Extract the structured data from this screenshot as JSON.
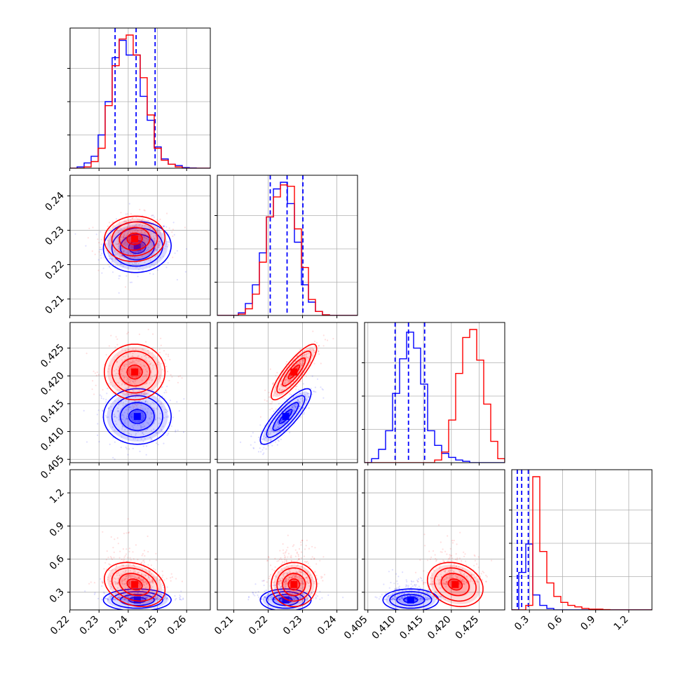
{
  "chart_data": {
    "type": "corner",
    "grid": true,
    "colors": {
      "series_a": "#0000ff",
      "series_b": "#ff0000"
    },
    "parameters": [
      {
        "ticks": [
          0.22,
          0.23,
          0.24,
          0.25,
          0.26
        ],
        "tick_labels": [
          "0.22",
          "0.23",
          "0.24",
          "0.25",
          "0.26"
        ],
        "range": [
          0.2201,
          0.2681
        ],
        "x_axis_shown": true,
        "y_axis_shown": false
      },
      {
        "ticks": [
          0.21,
          0.22,
          0.23,
          0.24
        ],
        "tick_labels": [
          "0.21",
          "0.22",
          "0.23",
          "0.24"
        ],
        "range": [
          0.2052,
          0.246
        ],
        "x_axis_shown": true,
        "y_axis_shown": true
      },
      {
        "ticks": [
          0.405,
          0.41,
          0.415,
          0.42,
          0.425
        ],
        "tick_labels": [
          "0.405",
          "0.410",
          "0.415",
          "0.420",
          "0.425"
        ],
        "range": [
          0.4044,
          0.4296
        ],
        "x_axis_shown": true,
        "y_axis_shown": true
      },
      {
        "ticks": [
          0.3,
          0.6,
          0.9,
          1.2
        ],
        "tick_labels": [
          "0.3",
          "0.6",
          "0.9",
          "1.2"
        ],
        "range": [
          0.14,
          1.41
        ],
        "x_axis_shown": true,
        "y_axis_shown": true
      }
    ],
    "series": [
      {
        "key": "series_a",
        "means": [
          0.2431,
          0.2251,
          0.4127,
          0.23
        ],
        "sds": [
          0.0058,
          0.0037,
          0.0025,
          0.05
        ],
        "corr": [
          [
            0,
            1,
            0.05
          ],
          [
            1,
            2,
            0.85
          ],
          [
            0,
            2,
            0.0
          ],
          [
            0,
            3,
            0.0
          ],
          [
            1,
            3,
            0.0
          ],
          [
            2,
            3,
            0.0
          ]
        ],
        "quantile_lines": [
          [
            0.2355,
            0.2427,
            0.2492
          ],
          [
            0.2206,
            0.2255,
            0.2301
          ],
          [
            0.4099,
            0.4123,
            0.4152
          ],
          [
            0.19,
            0.23,
            0.29
          ]
        ],
        "histograms": [
          [
            0.0,
            0.01,
            0.04,
            0.09,
            0.25,
            0.5,
            0.83,
            0.96,
            0.85,
            0.85,
            0.54,
            0.36,
            0.16,
            0.07,
            0.03,
            0.02,
            0.005,
            0.002,
            0.0,
            0.0
          ],
          [
            0.0,
            0.0,
            0.0,
            0.02,
            0.09,
            0.23,
            0.47,
            0.74,
            0.95,
            1.0,
            0.84,
            0.55,
            0.23,
            0.1,
            0.03,
            0.005,
            0.0,
            0.0,
            0.0,
            0.0
          ],
          [
            0.0,
            0.03,
            0.1,
            0.24,
            0.52,
            0.78,
            0.98,
            0.86,
            0.59,
            0.24,
            0.13,
            0.07,
            0.04,
            0.02,
            0.01,
            0.0,
            0.0,
            0.0,
            0.0,
            0.0
          ],
          [
            0.0,
            0.25,
            0.44,
            0.1,
            0.03,
            0.01,
            0.0,
            0.0,
            0.0,
            0.0,
            0.0,
            0.0,
            0.0,
            0.0,
            0.0,
            0.0,
            0.0,
            0.0,
            0.0,
            0.0
          ]
        ]
      },
      {
        "key": "series_b",
        "means": [
          0.2422,
          0.2275,
          0.4207,
          0.37
        ],
        "sds": [
          0.0052,
          0.0033,
          0.0025,
          0.1
        ],
        "corr": [
          [
            0,
            1,
            0.05
          ],
          [
            1,
            2,
            0.85
          ],
          [
            0,
            2,
            0.0
          ],
          [
            0,
            3,
            -0.25
          ],
          [
            1,
            3,
            0.0
          ],
          [
            2,
            3,
            -0.2
          ]
        ],
        "histograms": [
          [
            0.0,
            0.0,
            0.01,
            0.05,
            0.15,
            0.47,
            0.77,
            0.97,
            1.0,
            0.85,
            0.68,
            0.4,
            0.15,
            0.06,
            0.03,
            0.01,
            0.0,
            0.0,
            0.0,
            0.0
          ],
          [
            0.0,
            0.0,
            0.0,
            0.01,
            0.05,
            0.16,
            0.4,
            0.74,
            0.89,
            0.98,
            0.97,
            0.65,
            0.36,
            0.12,
            0.03,
            0.005,
            0.0,
            0.0,
            0.0,
            0.0
          ],
          [
            0.0,
            0.0,
            0.0,
            0.0,
            0.0,
            0.0,
            0.0,
            0.0,
            0.0,
            0.0,
            0.02,
            0.08,
            0.32,
            0.67,
            0.94,
            1.0,
            0.77,
            0.44,
            0.16,
            0.03
          ],
          [
            0.0,
            0.0,
            0.03,
            0.89,
            0.39,
            0.18,
            0.09,
            0.05,
            0.03,
            0.02,
            0.01,
            0.005,
            0.005,
            0.002,
            0.0,
            0.0,
            0.0,
            0.0,
            0.0,
            0.0
          ]
        ]
      }
    ]
  }
}
